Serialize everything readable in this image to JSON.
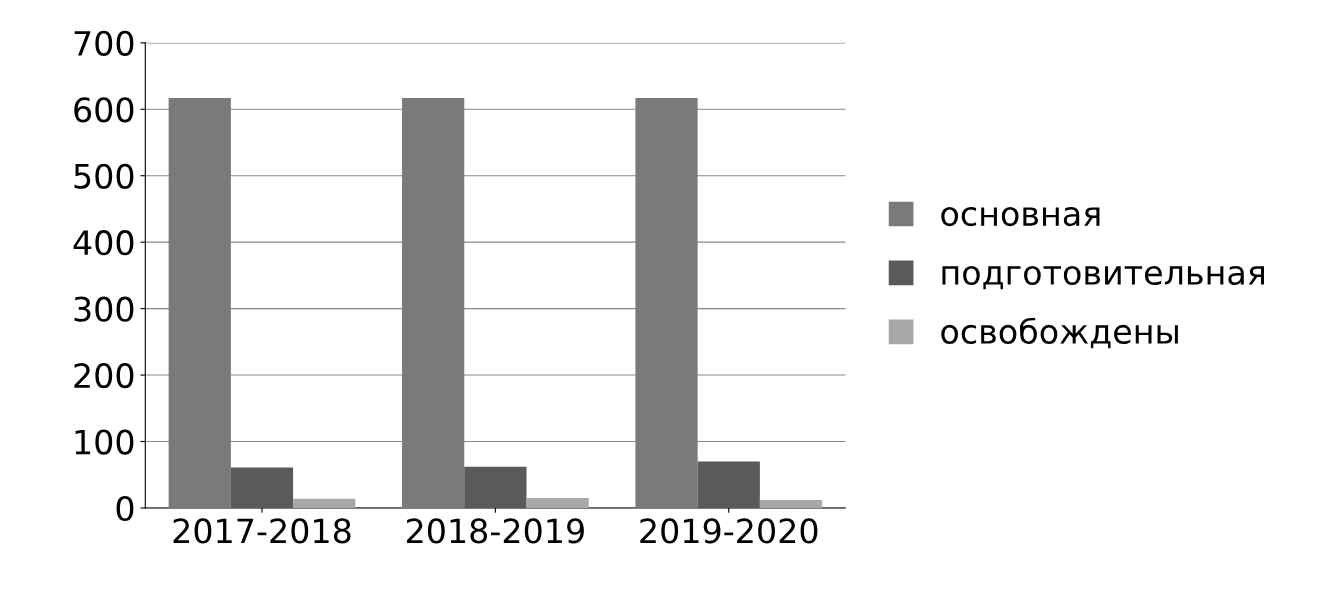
{
  "chart_data": {
    "type": "bar",
    "categories": [
      "2017-2018",
      "2018-2019",
      "2019-2020"
    ],
    "series": [
      {
        "name": "основная",
        "color": "#7a7a7a",
        "values": [
          617,
          617,
          617
        ]
      },
      {
        "name": "подготовительная",
        "color": "#5a5a5a",
        "values": [
          61,
          62,
          70
        ]
      },
      {
        "name": "освобождены",
        "color": "#a8a8a8",
        "values": [
          14,
          15,
          12
        ]
      }
    ],
    "ylim": [
      0,
      700
    ],
    "yticks": [
      0,
      100,
      200,
      300,
      400,
      500,
      600,
      700
    ],
    "grid": "y",
    "legend": "right"
  }
}
